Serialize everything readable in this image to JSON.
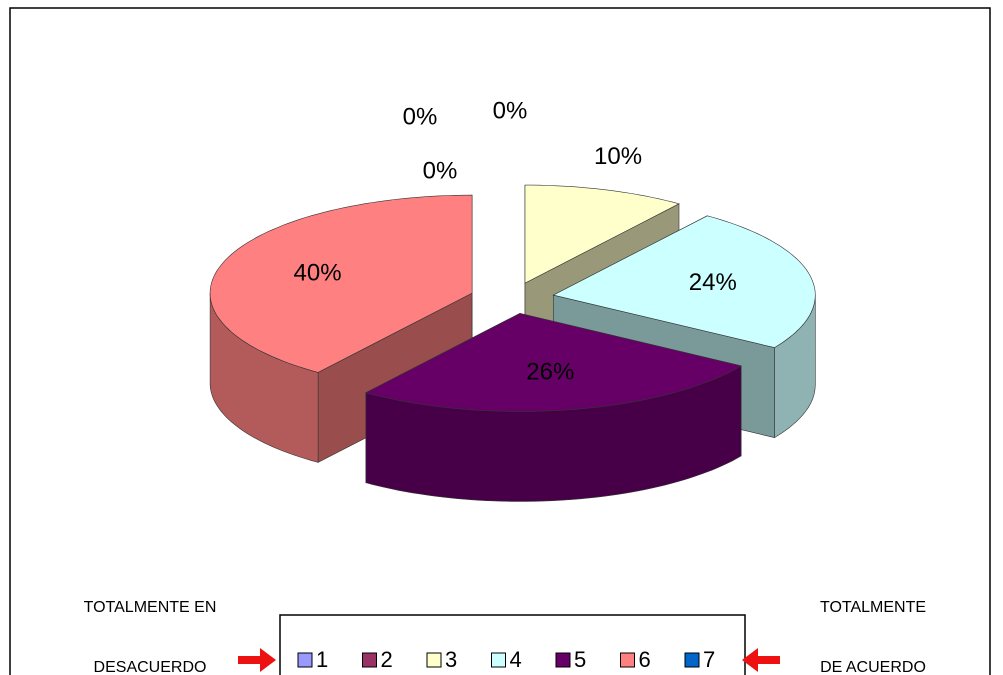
{
  "chart_data": {
    "type": "pie",
    "categories": [
      "1",
      "2",
      "3",
      "4",
      "5",
      "6",
      "7"
    ],
    "values": [
      0,
      0,
      10,
      24,
      26,
      40,
      0
    ],
    "value_labels": [
      "0%",
      "0%",
      "10%",
      "24%",
      "26%",
      "40%",
      "0%"
    ],
    "colors": [
      "#9999ff",
      "#993366",
      "#ffffcc",
      "#ccffff",
      "#660066",
      "#ff8080",
      "#0066cc"
    ],
    "three_d": true,
    "exploded": true,
    "legend": "bottom",
    "annotations": [
      [
        "TOTALMENTE EN",
        "DESACUERDO"
      ],
      [
        "TOTALMENTE",
        "DE ACUERDO"
      ]
    ]
  }
}
